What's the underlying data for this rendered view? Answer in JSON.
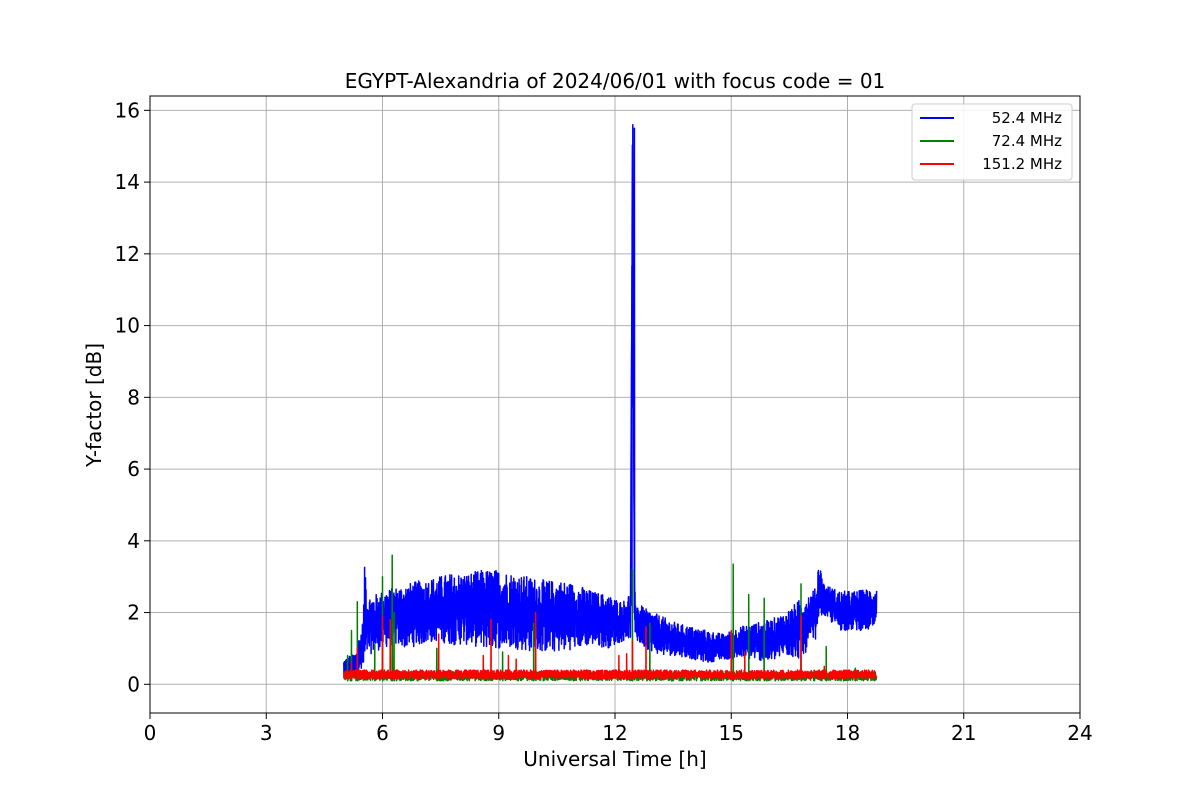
{
  "chart_data": {
    "type": "line",
    "title": "EGYPT-Alexandria of 2024/06/01 with focus code = 01",
    "xlabel": "Universal Time [h]",
    "ylabel": "Y-factor [dB]",
    "xlim": [
      0,
      24
    ],
    "ylim": [
      -0.8,
      16.4
    ],
    "x_ticks": [
      0,
      3,
      6,
      9,
      12,
      15,
      18,
      21,
      24
    ],
    "y_ticks": [
      0,
      2,
      4,
      6,
      8,
      10,
      12,
      14,
      16
    ],
    "grid": true,
    "legend_position": "top-right",
    "series": [
      {
        "name": "52.4 MHz",
        "color": "#0000ff",
        "x": [
          5.0,
          5.3,
          5.5,
          5.55,
          5.6,
          5.8,
          6.0,
          6.3,
          6.6,
          7.0,
          7.4,
          7.8,
          8.2,
          8.6,
          9.0,
          9.4,
          9.8,
          10.2,
          10.6,
          11.0,
          11.4,
          11.8,
          12.2,
          12.4,
          12.45,
          12.5,
          12.55,
          12.8,
          13.2,
          13.6,
          14.0,
          14.4,
          14.8,
          15.2,
          15.6,
          16.0,
          16.4,
          16.8,
          17.2,
          17.25,
          17.4,
          17.8,
          18.2,
          18.7
        ],
        "lo": [
          0.1,
          0.2,
          0.3,
          0.2,
          0.8,
          0.9,
          1.0,
          1.1,
          1.0,
          1.1,
          1.2,
          1.1,
          1.1,
          1.0,
          1.0,
          1.0,
          0.9,
          0.9,
          0.9,
          1.0,
          1.1,
          1.0,
          1.2,
          1.3,
          14.5,
          1.3,
          1.2,
          1.0,
          0.8,
          0.8,
          0.7,
          0.6,
          0.7,
          0.7,
          0.7,
          0.6,
          0.8,
          0.7,
          1.3,
          1.9,
          1.9,
          1.5,
          1.5,
          1.5
        ],
        "hi": [
          0.7,
          0.9,
          1.8,
          3.7,
          2.5,
          2.5,
          2.6,
          2.7,
          2.8,
          2.9,
          3.0,
          3.1,
          3.1,
          3.2,
          3.2,
          3.1,
          3.0,
          2.9,
          2.9,
          2.8,
          2.6,
          2.5,
          2.3,
          2.6,
          15.6,
          3.0,
          2.3,
          2.1,
          1.9,
          1.7,
          1.6,
          1.5,
          1.4,
          1.6,
          1.7,
          1.8,
          2.0,
          2.4,
          2.7,
          3.5,
          2.8,
          2.6,
          2.6,
          2.7
        ]
      },
      {
        "name": "72.4 MHz",
        "color": "#008000",
        "baseline": [
          0.1,
          0.35
        ],
        "spikes": [
          [
            5.1,
            0.8
          ],
          [
            5.2,
            1.5
          ],
          [
            5.35,
            2.3
          ],
          [
            5.8,
            1.1
          ],
          [
            6.0,
            3.0
          ],
          [
            6.25,
            3.6
          ],
          [
            6.3,
            2.0
          ],
          [
            7.4,
            1.0
          ],
          [
            9.1,
            0.9
          ],
          [
            9.9,
            1.7
          ],
          [
            12.45,
            3.2
          ],
          [
            12.9,
            1.7
          ],
          [
            15.05,
            3.35
          ],
          [
            15.45,
            2.5
          ],
          [
            15.85,
            2.4
          ],
          [
            16.8,
            2.8
          ],
          [
            17.45,
            1.05
          ],
          [
            18.2,
            0.45
          ]
        ]
      },
      {
        "name": "151.2 MHz",
        "color": "#ff0000",
        "baseline": [
          0.15,
          0.4
        ],
        "spikes": [
          [
            5.2,
            0.6
          ],
          [
            5.35,
            1.0
          ],
          [
            6.0,
            1.9
          ],
          [
            6.2,
            1.8
          ],
          [
            7.45,
            1.4
          ],
          [
            8.6,
            0.8
          ],
          [
            8.8,
            1.8
          ],
          [
            9.25,
            0.8
          ],
          [
            9.45,
            0.7
          ],
          [
            9.95,
            2.0
          ],
          [
            12.1,
            0.8
          ],
          [
            12.3,
            0.85
          ],
          [
            12.45,
            1.2
          ],
          [
            12.8,
            1.6
          ],
          [
            15.0,
            1.5
          ],
          [
            15.35,
            0.9
          ],
          [
            16.8,
            1.9
          ],
          [
            17.4,
            0.5
          ]
        ]
      }
    ]
  }
}
